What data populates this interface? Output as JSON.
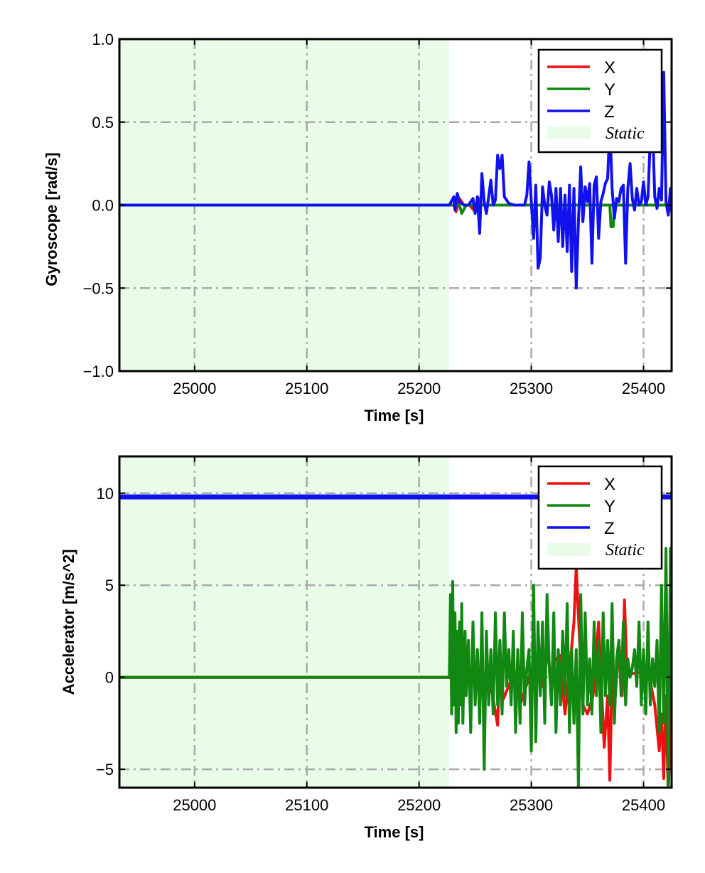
{
  "colors": {
    "X": "#ee1111",
    "Y": "#118811",
    "Z": "#1111ee",
    "static_fill": "#e8fce8",
    "grid": "#aaaaaa"
  },
  "chart_data": [
    {
      "type": "line",
      "xlabel": "Time [s]",
      "ylabel": "Gyroscope [rad/s]",
      "xlim": [
        24933,
        25425
      ],
      "ylim": [
        -1.0,
        1.0
      ],
      "xticks": [
        25000,
        25100,
        25200,
        25300,
        25400
      ],
      "xtick_labels": [
        "25000",
        "25100",
        "25200",
        "25300",
        "25400"
      ],
      "yticks": [
        -1.0,
        -0.5,
        0.0,
        0.5,
        1.0
      ],
      "ytick_labels": [
        "−1.0",
        "−0.5",
        "0.0",
        "0.5",
        "1.0"
      ],
      "grid": true,
      "legend_placement": "top-right",
      "static_region": [
        24933,
        25227
      ],
      "legend": [
        "X",
        "Y",
        "Z",
        "Static"
      ],
      "series": [
        {
          "name": "X",
          "x": [
            24933,
            25227,
            25231,
            25233,
            25236,
            25240,
            25245,
            25250,
            25253,
            25256,
            25260,
            25300,
            25372,
            25425
          ],
          "y": [
            0,
            0,
            0,
            -0.04,
            0.04,
            0,
            0,
            -0.04,
            0.04,
            0,
            0,
            0,
            0,
            0
          ]
        },
        {
          "name": "Y",
          "x": [
            24933,
            25227,
            25236,
            25238,
            25242,
            25300,
            25340,
            25370,
            25371,
            25373,
            25374,
            25425
          ],
          "y": [
            0,
            0,
            0,
            -0.05,
            0,
            0,
            0,
            0,
            -0.13,
            -0.13,
            0,
            0
          ]
        },
        {
          "name": "Z",
          "x": [
            24933,
            25227,
            25231,
            25232,
            25234,
            25236,
            25240,
            25244,
            25248,
            25250,
            25252,
            25254,
            25256,
            25258,
            25260,
            25262,
            25264,
            25266,
            25268,
            25270,
            25272,
            25274,
            25276,
            25280,
            25285,
            25290,
            25294,
            25296,
            25298,
            25300,
            25302,
            25304,
            25306,
            25308,
            25310,
            25312,
            25314,
            25316,
            25318,
            25320,
            25322,
            25324,
            25326,
            25328,
            25330,
            25332,
            25334,
            25336,
            25338,
            25340,
            25342,
            25344,
            25346,
            25348,
            25350,
            25352,
            25354,
            25356,
            25358,
            25360,
            25362,
            25364,
            25366,
            25368,
            25370,
            25372,
            25374,
            25376,
            25378,
            25380,
            25382,
            25384,
            25386,
            25388,
            25390,
            25392,
            25394,
            25396,
            25398,
            25400,
            25402,
            25404,
            25406,
            25408,
            25410,
            25412,
            25414,
            25416,
            25418,
            25420,
            25422,
            25424,
            25425
          ],
          "y": [
            0,
            0,
            0.05,
            -0.03,
            0.07,
            0.02,
            0,
            0,
            0.04,
            -0.05,
            0.05,
            -0.17,
            0.19,
            0.02,
            -0.05,
            0.05,
            0.15,
            0,
            0.03,
            0.3,
            0.22,
            0.3,
            0.05,
            0.01,
            0,
            0,
            0,
            0.06,
            0.26,
            0.02,
            -0.2,
            0.12,
            -0.38,
            -0.32,
            0.11,
            0,
            -0.06,
            0.14,
            0.06,
            -0.15,
            0.1,
            -0.22,
            0.1,
            -0.25,
            0.06,
            -0.28,
            0.12,
            -0.4,
            0.1,
            -0.5,
            -0.1,
            0.23,
            -0.1,
            0.11,
            0.02,
            0.13,
            -0.35,
            0.12,
            0.17,
            -0.2,
            0.02,
            0.07,
            0.13,
            0.16,
            0.48,
            0.1,
            -0.08,
            0.04,
            0.02,
            0.1,
            0.12,
            -0.35,
            0.1,
            0.25,
            0.04,
            -0.03,
            0.1,
            0,
            0.02,
            0.14,
            0,
            0.05,
            0.4,
            0.48,
            0.05,
            -0.02,
            0.1,
            0.03,
            0.8,
            0.02,
            -0.06,
            0.1,
            -0.04
          ]
        }
      ]
    },
    {
      "type": "line",
      "xlabel": "Time [s]",
      "ylabel": "Accelerator [m/s^2]",
      "xlim": [
        24933,
        25425
      ],
      "ylim": [
        -6.0,
        12.0
      ],
      "xticks": [
        25000,
        25100,
        25200,
        25300,
        25400
      ],
      "xtick_labels": [
        "25000",
        "25100",
        "25200",
        "25300",
        "25400"
      ],
      "yticks": [
        -5,
        0,
        5,
        10
      ],
      "ytick_labels": [
        "−5",
        "0",
        "5",
        "10"
      ],
      "grid": true,
      "legend_placement": "top-right",
      "static_region": [
        24933,
        25227
      ],
      "legend": [
        "X",
        "Y",
        "Z",
        "Static"
      ],
      "series": [
        {
          "name": "X",
          "x": [
            24933,
            25227,
            25240,
            25255,
            25265,
            25270,
            25272,
            25275,
            25285,
            25290,
            25300,
            25305,
            25310,
            25315,
            25318,
            25320,
            25325,
            25330,
            25335,
            25338,
            25340,
            25343,
            25346,
            25350,
            25355,
            25360,
            25365,
            25368,
            25370,
            25372,
            25375,
            25378,
            25381,
            25383,
            25385,
            25390,
            25400,
            25405,
            25410,
            25414,
            25416,
            25418,
            25420,
            25422,
            25425
          ],
          "y": [
            0,
            0,
            -0.3,
            0.4,
            -0.8,
            -2.6,
            1.0,
            -1.2,
            0.3,
            -1.5,
            0.4,
            0.2,
            -0.5,
            1.5,
            -1.0,
            0.8,
            1.2,
            -2.0,
            1.0,
            3.0,
            6.0,
            2.0,
            -1.5,
            -2.0,
            -1.0,
            3.0,
            -3.8,
            -1.0,
            -5.6,
            0.5,
            -1.0,
            2.0,
            -1.0,
            4.2,
            0.6,
            0.2,
            0.3,
            0.1,
            -1.5,
            -4.0,
            -2.0,
            -5.5,
            -1.0,
            -6.5,
            0
          ]
        },
        {
          "name": "Y",
          "x": [
            24933,
            25227,
            25228,
            25229,
            25230,
            25231,
            25232,
            25233,
            25234,
            25235,
            25236,
            25237,
            25238,
            25239,
            25240,
            25241,
            25242,
            25243,
            25244,
            25246,
            25248,
            25250,
            25252,
            25254,
            25256,
            25258,
            25260,
            25262,
            25264,
            25266,
            25268,
            25270,
            25272,
            25274,
            25276,
            25278,
            25280,
            25282,
            25284,
            25286,
            25288,
            25290,
            25292,
            25294,
            25296,
            25298,
            25300,
            25302,
            25304,
            25306,
            25308,
            25310,
            25312,
            25314,
            25316,
            25318,
            25320,
            25322,
            25324,
            25326,
            25328,
            25330,
            25332,
            25334,
            25336,
            25338,
            25340,
            25342,
            25344,
            25346,
            25348,
            25350,
            25352,
            25354,
            25356,
            25358,
            25360,
            25362,
            25364,
            25366,
            25368,
            25370,
            25372,
            25374,
            25376,
            25378,
            25380,
            25382,
            25384,
            25386,
            25388,
            25390,
            25392,
            25394,
            25396,
            25398,
            25400,
            25402,
            25404,
            25406,
            25408,
            25410,
            25412,
            25414,
            25416,
            25418,
            25420,
            25422,
            25424,
            25425
          ],
          "y": [
            0,
            0,
            4.5,
            -2.0,
            5.2,
            -1.5,
            3.5,
            -3.0,
            2.5,
            -2.5,
            3.0,
            -1.5,
            4.0,
            -2.5,
            0.5,
            2.5,
            -1.0,
            0.5,
            2.0,
            -3.0,
            3.0,
            -1.5,
            1.5,
            -2.5,
            3.5,
            -5.0,
            2.5,
            -1.5,
            1.5,
            -2.0,
            3.5,
            -1.5,
            2.0,
            -2.0,
            3.5,
            -0.5,
            1.5,
            -1.5,
            2.5,
            -3.0,
            1.5,
            -2.5,
            3.5,
            -1.5,
            0.5,
            1.5,
            -4.0,
            5.0,
            -3.5,
            3.0,
            -1.0,
            3.0,
            -2.5,
            4.5,
            0.5,
            -1.5,
            3.5,
            -3.0,
            1.5,
            -1.5,
            2.5,
            -1.0,
            4.0,
            -3.0,
            1.5,
            -2.5,
            1.5,
            -6.0,
            4.5,
            -2.0,
            3.5,
            -1.5,
            1.0,
            -2.0,
            3.0,
            -1.0,
            2.0,
            -3.0,
            3.5,
            -1.0,
            2.0,
            -1.5,
            4.0,
            -2.5,
            1.0,
            2.0,
            -1.0,
            3.0,
            -1.5,
            1.0,
            0.0,
            0.5,
            1.5,
            -0.5,
            3.0,
            -1.5,
            1.5,
            -2.0,
            3.0,
            -1.5,
            1.0,
            -0.5,
            2.0,
            -3.0,
            5.0,
            -2.5,
            7.0,
            -6.0,
            7.0,
            0
          ]
        },
        {
          "name": "Z",
          "x": [
            24933,
            25227,
            25300,
            25425
          ],
          "y": [
            9.8,
            9.8,
            9.8,
            9.8
          ]
        }
      ]
    }
  ]
}
